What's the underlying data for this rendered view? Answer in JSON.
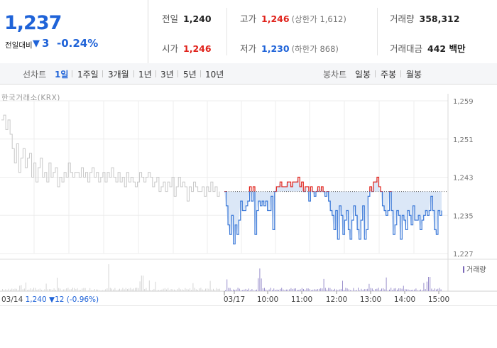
{
  "quote": {
    "price": "1,237",
    "change_label": "전일대비",
    "change_dir_icon": "down-triangle-icon",
    "change_dir": "▼",
    "change_value": "3",
    "change_pct": "-0.24%"
  },
  "stats": {
    "prev_close": {
      "label": "전일",
      "value": "1,240"
    },
    "high": {
      "label": "고가",
      "value": "1,246",
      "sub": "(상한가 1,612)"
    },
    "volume": {
      "label": "거래량",
      "value": "358,312"
    },
    "open": {
      "label": "시가",
      "value": "1,246"
    },
    "low": {
      "label": "저가",
      "value": "1,230",
      "sub": "(하한가 868)"
    },
    "amount": {
      "label": "거래대금",
      "value": "442 백만"
    }
  },
  "period_tabs": {
    "label": "선차트",
    "items": [
      "1일",
      "1주일",
      "3개월",
      "1년",
      "3년",
      "5년",
      "10년"
    ],
    "active": "1일"
  },
  "candle_tabs": {
    "label": "봉차트",
    "items": [
      "일봉",
      "주봉",
      "월봉"
    ]
  },
  "source": "한국거래소(KRX)",
  "colors": {
    "up": "#e0221b",
    "down": "#1f63d8",
    "prev_day_line": "#c8c8c8",
    "today_line": "#3a78d8",
    "fill": "#dbe7f7"
  },
  "chart_data": {
    "type": "line",
    "y_ticks": [
      "1,259",
      "1,251",
      "1,243",
      "1,235",
      "1,227"
    ],
    "ylim": [
      1227,
      1259
    ],
    "reference_line": 1240,
    "x_ticks": [
      "03/17",
      "10:00",
      "11:00",
      "12:00",
      "13:00",
      "14:00",
      "15:00"
    ],
    "volume_legend": "거래량",
    "prev_day_note": {
      "date": "03/14",
      "close": "1,240",
      "change_icon": "down-triangle-icon",
      "change_dir": "▼",
      "change": "12",
      "change_pct": "(-0.96%)"
    },
    "series": [
      {
        "segment": "03/14",
        "values": [
          1255,
          1256,
          1253,
          1255,
          1252,
          1249,
          1246,
          1250,
          1244,
          1247,
          1249,
          1245,
          1247,
          1248,
          1243,
          1246,
          1242,
          1245,
          1247,
          1243,
          1244,
          1242,
          1246,
          1243,
          1244,
          1245,
          1241,
          1243,
          1242,
          1244,
          1243,
          1246,
          1244,
          1243,
          1244,
          1244,
          1243,
          1245,
          1243,
          1244,
          1242,
          1244,
          1245,
          1243,
          1244,
          1242,
          1243,
          1244,
          1242,
          1244,
          1243,
          1245,
          1243,
          1242,
          1244,
          1242,
          1243,
          1241,
          1244,
          1242,
          1243,
          1242,
          1241,
          1242,
          1244,
          1243,
          1242,
          1243,
          1244,
          1243,
          1241,
          1242,
          1243,
          1240,
          1241,
          1242,
          1240,
          1242,
          1241,
          1243,
          1239,
          1241,
          1243,
          1241,
          1242,
          1241,
          1238,
          1241,
          1240,
          1242,
          1241,
          1240,
          1240,
          1241,
          1239,
          1241,
          1240,
          1242,
          1240,
          1241,
          1239,
          1240
        ]
      },
      {
        "segment": "03/17",
        "values": [
          1240,
          1237,
          1233,
          1231,
          1235,
          1229,
          1233,
          1231,
          1234,
          1238,
          1236,
          1236,
          1237,
          1238,
          1241,
          1238,
          1241,
          1231,
          1236,
          1238,
          1237,
          1238,
          1237,
          1238,
          1236,
          1236,
          1239,
          1232,
          1240,
          1241,
          1241,
          1242,
          1241,
          1241,
          1241,
          1242,
          1242,
          1241,
          1242,
          1242,
          1242,
          1243,
          1241,
          1242,
          1240,
          1241,
          1241,
          1238,
          1241,
          1240,
          1239,
          1240,
          1241,
          1240,
          1241,
          1240,
          1239,
          1240,
          1238,
          1236,
          1235,
          1232,
          1236,
          1230,
          1237,
          1235,
          1231,
          1234,
          1236,
          1232,
          1230,
          1234,
          1237,
          1235,
          1232,
          1230,
          1234,
          1237,
          1230,
          1232,
          1239,
          1241,
          1240,
          1242,
          1242,
          1243,
          1241,
          1240,
          1237,
          1236,
          1235,
          1236,
          1240,
          1236,
          1231,
          1233,
          1236,
          1235,
          1230,
          1235,
          1234,
          1232,
          1236,
          1235,
          1233,
          1237,
          1234,
          1234,
          1235,
          1232,
          1234,
          1235,
          1236,
          1235,
          1236,
          1239,
          1236,
          1232,
          1231,
          1236,
          1235,
          1236
        ]
      }
    ]
  }
}
